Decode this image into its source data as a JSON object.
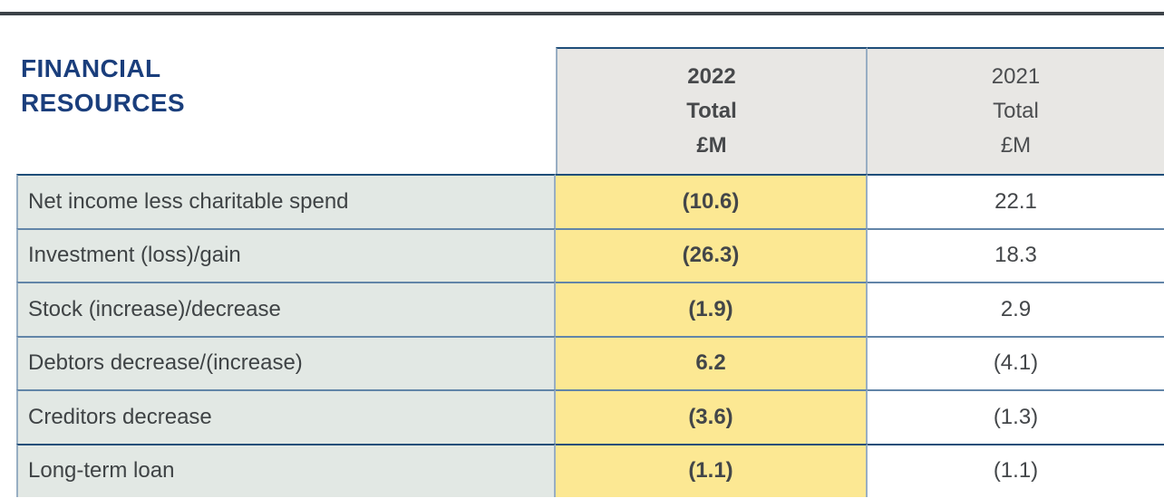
{
  "title": {
    "line1": "FINANCIAL",
    "line2": "RESOURCES"
  },
  "table": {
    "columns": [
      {
        "year": "2022",
        "period": "Total",
        "unit": "£M",
        "highlighted": true
      },
      {
        "year": "2021",
        "period": "Total",
        "unit": "£M",
        "highlighted": false
      }
    ],
    "rows": [
      {
        "label": "Net income less charitable spend",
        "total_2022": "(10.6)",
        "total_2021": "22.1"
      },
      {
        "label": "Investment (loss)/gain",
        "total_2022": "(26.3)",
        "total_2021": "18.3"
      },
      {
        "label": "Stock (increase)/decrease",
        "total_2022": "(1.9)",
        "total_2021": "2.9"
      },
      {
        "label": "Debtors decrease/(increase)",
        "total_2022": "6.2",
        "total_2021": "(4.1)"
      },
      {
        "label": "Creditors decrease",
        "total_2022": "(3.6)",
        "total_2021": "(1.3)"
      },
      {
        "label": "Long-term loan",
        "total_2022": "(1.1)",
        "total_2021": "(1.1)"
      }
    ]
  },
  "colors": {
    "title_navy": "#1a3e7c",
    "highlight_yellow": "#fce893",
    "header_gray": "#e8e7e4",
    "label_row_bg": "#e2e8e4",
    "border_navy": "#1f4e79",
    "border_blue_gray": "#6285a8",
    "border_vertical": "#98aec3",
    "top_rule": "#3c4248"
  }
}
